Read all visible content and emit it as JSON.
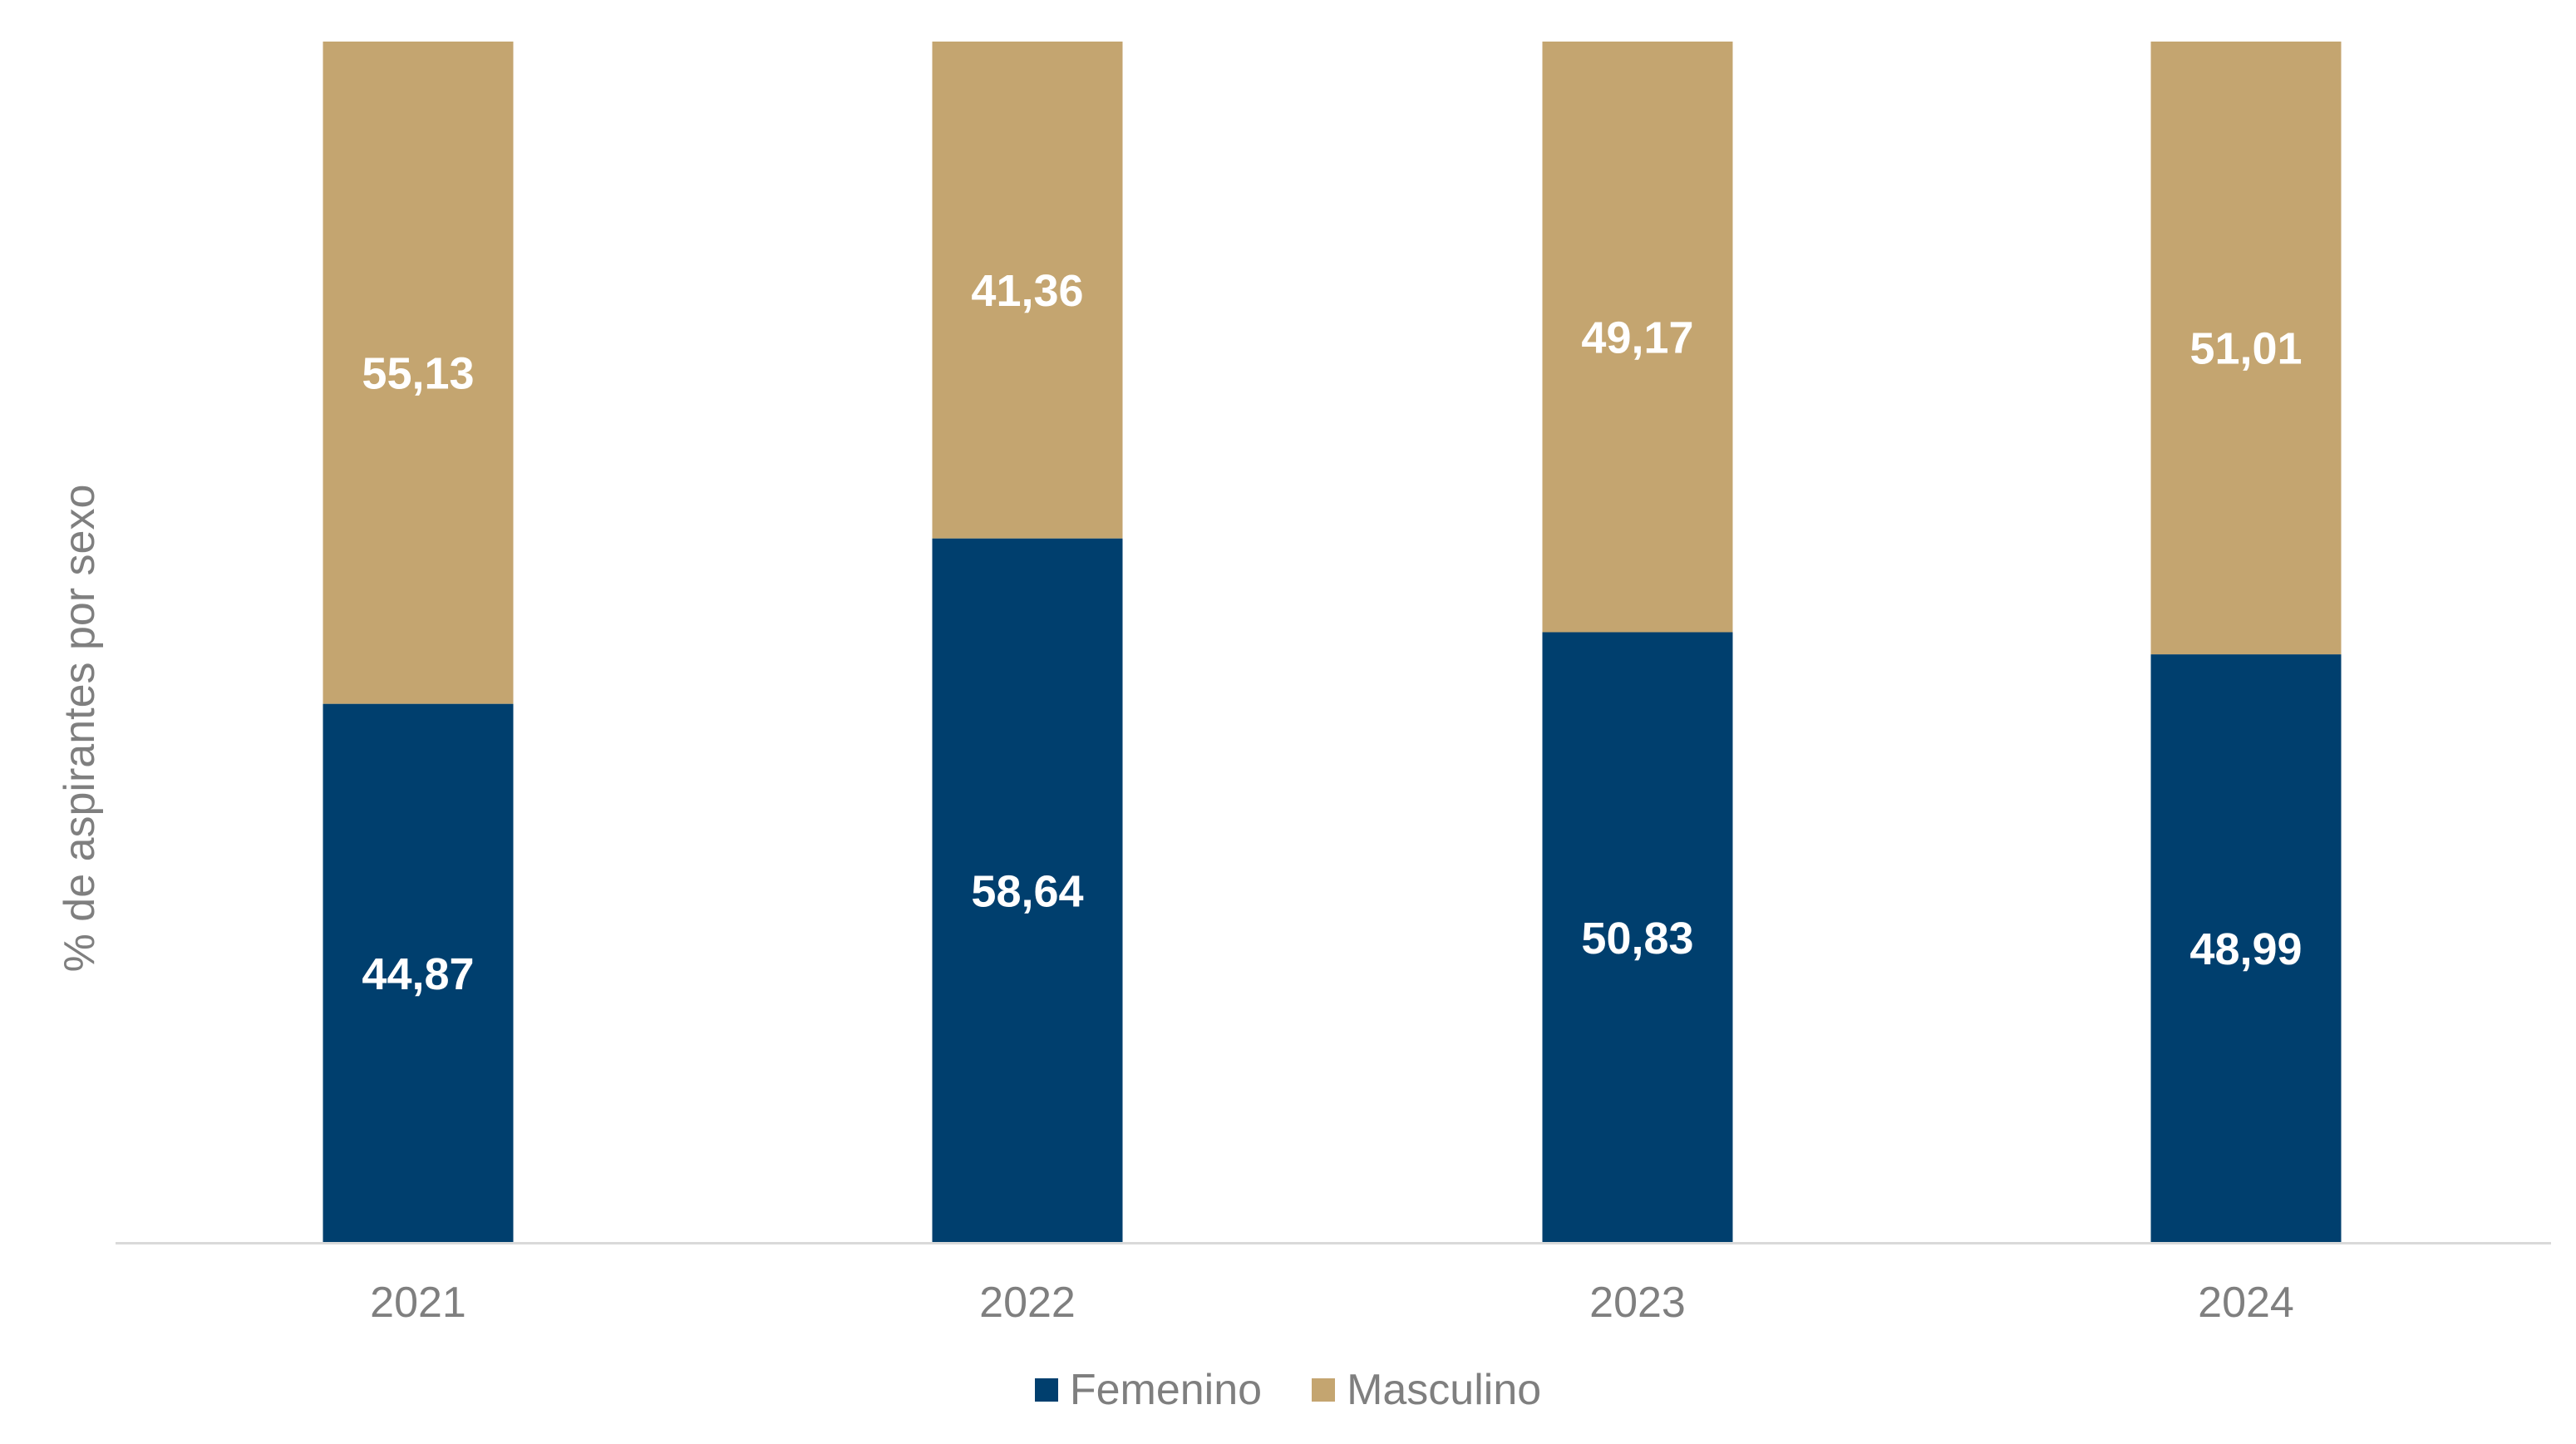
{
  "chart_data": {
    "type": "bar",
    "stacked": true,
    "categories": [
      "2021",
      "2022",
      "2023",
      "2024"
    ],
    "series": [
      {
        "name": "Femenino",
        "values": [
          44.87,
          58.64,
          50.83,
          48.99
        ],
        "labels": [
          "44,87",
          "58,64",
          "50,83",
          "48,99"
        ],
        "color": "#003f6e"
      },
      {
        "name": "Masculino",
        "values": [
          55.13,
          41.36,
          49.17,
          51.01
        ],
        "labels": [
          "55,13",
          "41,36",
          "49,17",
          "51,01"
        ],
        "color": "#c4a570"
      }
    ],
    "title": "",
    "xlabel": "",
    "ylabel": "% de aspirantes por sexo",
    "ylim": [
      0,
      100
    ],
    "grid": false,
    "legend": "bottom"
  }
}
